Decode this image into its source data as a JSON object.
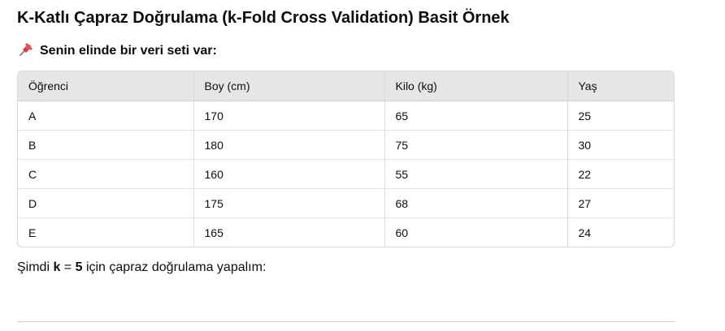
{
  "title": "K-Katlı Çapraz Doğrulama (k-Fold Cross Validation) Basit Örnek",
  "intro": {
    "icon": "pushpin-icon",
    "text": "Senin elinde bir veri seti var:"
  },
  "table": {
    "headers": [
      "Öğrenci",
      "Boy (cm)",
      "Kilo (kg)",
      "Yaş"
    ],
    "rows": [
      [
        "A",
        "170",
        "65",
        "25"
      ],
      [
        "B",
        "180",
        "75",
        "30"
      ],
      [
        "C",
        "160",
        "55",
        "22"
      ],
      [
        "D",
        "175",
        "68",
        "27"
      ],
      [
        "E",
        "165",
        "60",
        "24"
      ]
    ]
  },
  "sentence": {
    "prefix": "Şimdi ",
    "k_label": "k",
    "equals": " = ",
    "k_value": "5",
    "suffix": " için çapraz doğrulama yapalım:"
  }
}
